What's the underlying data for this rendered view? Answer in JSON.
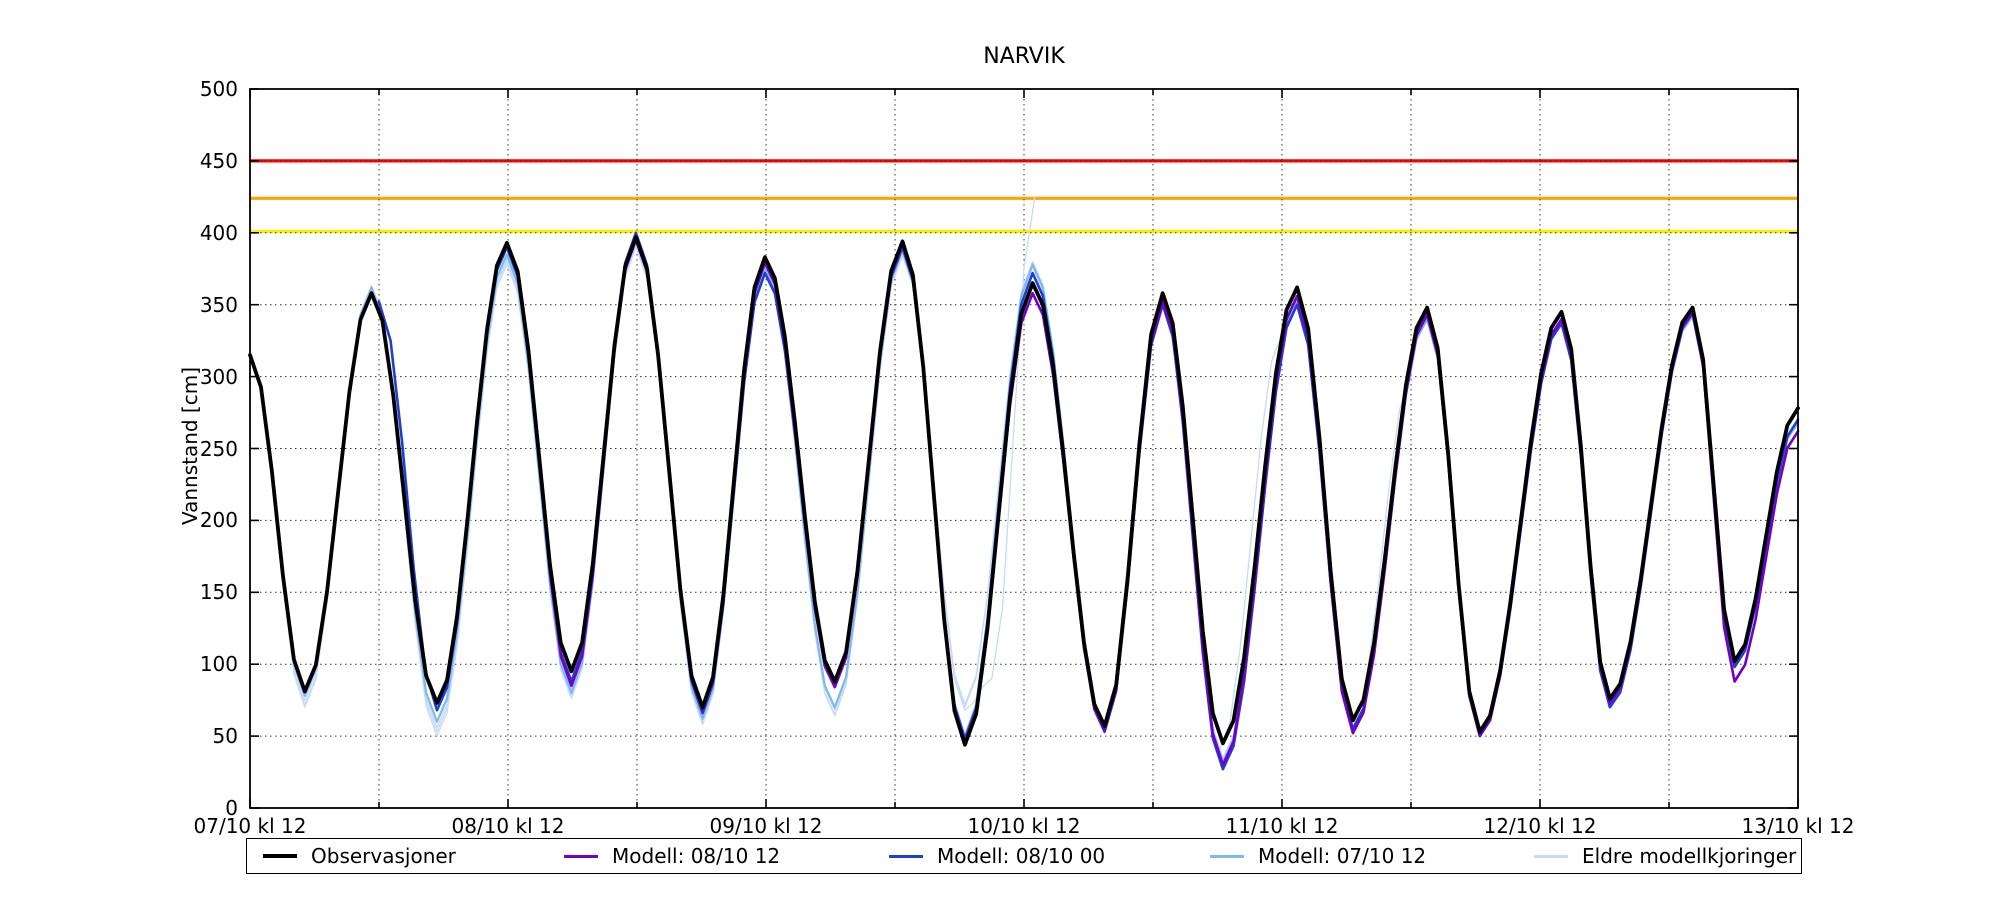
{
  "chart_data": {
    "type": "line",
    "title": "NARVIK",
    "xlabel": "",
    "ylabel": "Vannstand [cm]",
    "ylim": [
      0,
      500
    ],
    "yticks": [
      0,
      50,
      100,
      150,
      200,
      250,
      300,
      350,
      400,
      450,
      500
    ],
    "x_unit": "hours since 07/10 kl 12",
    "xlim": [
      0,
      144
    ],
    "x_minor_step_hours": 12,
    "xticks": [
      {
        "t": 0,
        "label": "07/10 kl 12"
      },
      {
        "t": 24,
        "label": "08/10 kl 12"
      },
      {
        "t": 48,
        "label": "09/10 kl 12"
      },
      {
        "t": 72,
        "label": "10/10 kl 12"
      },
      {
        "t": 96,
        "label": "11/10 kl 12"
      },
      {
        "t": 120,
        "label": "12/10 kl 12"
      },
      {
        "t": 144,
        "label": "13/10 kl 12"
      }
    ],
    "grid": "dotted, horizontal every 50 cm, vertical every 12 h",
    "legend_position": "bottom, outside axes, single row",
    "thresholds": [
      {
        "name": "red-warning-level",
        "value": 450,
        "color": "#ff0000"
      },
      {
        "name": "orange-warning-level",
        "value": 424,
        "color": "#ffa500"
      },
      {
        "name": "yellow-warning-level",
        "value": 401,
        "color": "#ffee00"
      }
    ],
    "interpolation": "cosine between listed [hour, cm] extreme points, sampled hourly",
    "series": [
      {
        "name": "Observasjoner",
        "color": "#000000",
        "width": 3.8,
        "runs": [
          [
            [
              0,
              315
            ],
            [
              5.1,
              81
            ],
            [
              11.3,
              358
            ],
            [
              17.4,
              73
            ],
            [
              23.9,
              393
            ],
            [
              29.9,
              95
            ],
            [
              35.9,
              397
            ],
            [
              42.1,
              70
            ],
            [
              47.9,
              383
            ],
            [
              54.4,
              88
            ],
            [
              60.7,
              394
            ],
            [
              66.5,
              44
            ],
            [
              72.8,
              365
            ],
            [
              79.5,
              57
            ],
            [
              84.9,
              358
            ],
            [
              90.5,
              45
            ],
            [
              97.4,
              362
            ],
            [
              102.6,
              61
            ],
            [
              109.5,
              348
            ],
            [
              114.4,
              53
            ],
            [
              122,
              345
            ],
            [
              126.5,
              76
            ],
            [
              134.2,
              348
            ],
            [
              138.1,
              102
            ],
            [
              144,
              278
            ]
          ]
        ]
      },
      {
        "name": "Modell: 08/10 12",
        "color": "#7300c8",
        "width": 2.6,
        "runs": [
          [
            [
              24,
              391
            ],
            [
              29.9,
              85
            ],
            [
              35.9,
              395
            ],
            [
              42.1,
              68
            ],
            [
              47.9,
              379
            ],
            [
              54.4,
              84
            ],
            [
              60.7,
              392
            ],
            [
              66.5,
              46
            ],
            [
              72.8,
              358
            ],
            [
              79.5,
              54
            ],
            [
              84.9,
              352
            ],
            [
              90.5,
              30
            ],
            [
              97.4,
              356
            ],
            [
              102.6,
              52
            ],
            [
              109.5,
              343
            ],
            [
              114.4,
              50
            ],
            [
              122,
              340
            ],
            [
              126.5,
              73
            ],
            [
              134.2,
              345
            ],
            [
              138.1,
              88
            ],
            [
              144,
              262
            ]
          ]
        ]
      },
      {
        "name": "Modell: 08/10 00",
        "color": "#1f3fd0",
        "width": 2.6,
        "runs": [
          [
            [
              12,
              352
            ],
            [
              17.4,
              68
            ],
            [
              23.9,
              390
            ],
            [
              29.9,
              88
            ],
            [
              35.9,
              400
            ],
            [
              42.1,
              66
            ],
            [
              47.9,
              372
            ],
            [
              54.4,
              86
            ],
            [
              60.7,
              390
            ],
            [
              66.5,
              48
            ],
            [
              72.8,
              372
            ],
            [
              79.5,
              53
            ],
            [
              84.9,
              350
            ],
            [
              90.5,
              27
            ],
            [
              97.4,
              350
            ],
            [
              102.6,
              55
            ],
            [
              109.5,
              345
            ],
            [
              114.4,
              50
            ],
            [
              122,
              337
            ],
            [
              126.5,
              70
            ],
            [
              134.2,
              344
            ],
            [
              138.1,
              98
            ],
            [
              144,
              270
            ]
          ]
        ]
      },
      {
        "name": "Modell: 07/10 12",
        "color": "#7eb9ec",
        "width": 2.2,
        "runs": [
          [
            [
              0,
              315
            ],
            [
              5.1,
              78
            ],
            [
              11.3,
              362
            ],
            [
              17.4,
              60
            ],
            [
              23.9,
              385
            ],
            [
              29.9,
              80
            ],
            [
              35.9,
              395
            ],
            [
              42.1,
              62
            ],
            [
              47.9,
              375
            ],
            [
              54.4,
              70
            ],
            [
              60.7,
              388
            ],
            [
              66.5,
              50
            ],
            [
              72.8,
              378
            ],
            [
              79.5,
              55
            ],
            [
              84.9,
              352
            ],
            [
              90.5,
              32
            ],
            [
              97.4,
              352
            ],
            [
              102.6,
              54
            ],
            [
              109.5,
              340
            ],
            [
              114.4,
              52
            ],
            [
              122,
              338
            ],
            [
              126.5,
              72
            ],
            [
              134.2,
              342
            ],
            [
              138.1,
              100
            ],
            [
              144,
              268
            ]
          ]
        ]
      },
      {
        "name": "Eldre modellkjoringer",
        "color": "#c8dbf6",
        "width": 1.3,
        "runs": [
          [
            [
              0,
              315
            ],
            [
              5.1,
              70
            ],
            [
              11.3,
              360
            ],
            [
              17.4,
              53
            ],
            [
              23.9,
              382
            ],
            [
              29.9,
              78
            ],
            [
              35.9,
              390
            ],
            [
              42.1,
              58
            ],
            [
              47.9,
              372
            ],
            [
              54.4,
              65
            ],
            [
              60.7,
              386
            ],
            [
              66.5,
              68
            ],
            [
              69,
              90
            ],
            [
              73,
              425
            ]
          ],
          [
            [
              0,
              315
            ],
            [
              5.1,
              75
            ],
            [
              11.3,
              363
            ],
            [
              17.4,
              56
            ],
            [
              23.9,
              380
            ],
            [
              29.9,
              82
            ],
            [
              35.9,
              393
            ],
            [
              42.1,
              64
            ],
            [
              47.9,
              377
            ],
            [
              54.4,
              68
            ],
            [
              60.7,
              384
            ],
            [
              66.5,
              70
            ],
            [
              72.8,
              380
            ],
            [
              79.5,
              58
            ],
            [
              84.9,
              353
            ],
            [
              90.5,
              35
            ],
            [
              97.4,
              354
            ],
            [
              102.6,
              56
            ],
            [
              108,
              300
            ]
          ],
          [
            [
              0,
              315
            ],
            [
              5.1,
              72
            ],
            [
              11.3,
              361
            ],
            [
              17.4,
              50
            ],
            [
              23.9,
              378
            ],
            [
              29.9,
              76
            ],
            [
              35.9,
              391
            ],
            [
              42.1,
              60
            ],
            [
              47.9,
              374
            ],
            [
              54.4,
              64
            ],
            [
              60.7,
              387
            ],
            [
              66.5,
              72
            ],
            [
              72.8,
              376
            ],
            [
              79.5,
              56
            ],
            [
              84.9,
              350
            ],
            [
              90.2,
              40
            ],
            [
              96,
              330
            ]
          ]
        ]
      }
    ]
  }
}
